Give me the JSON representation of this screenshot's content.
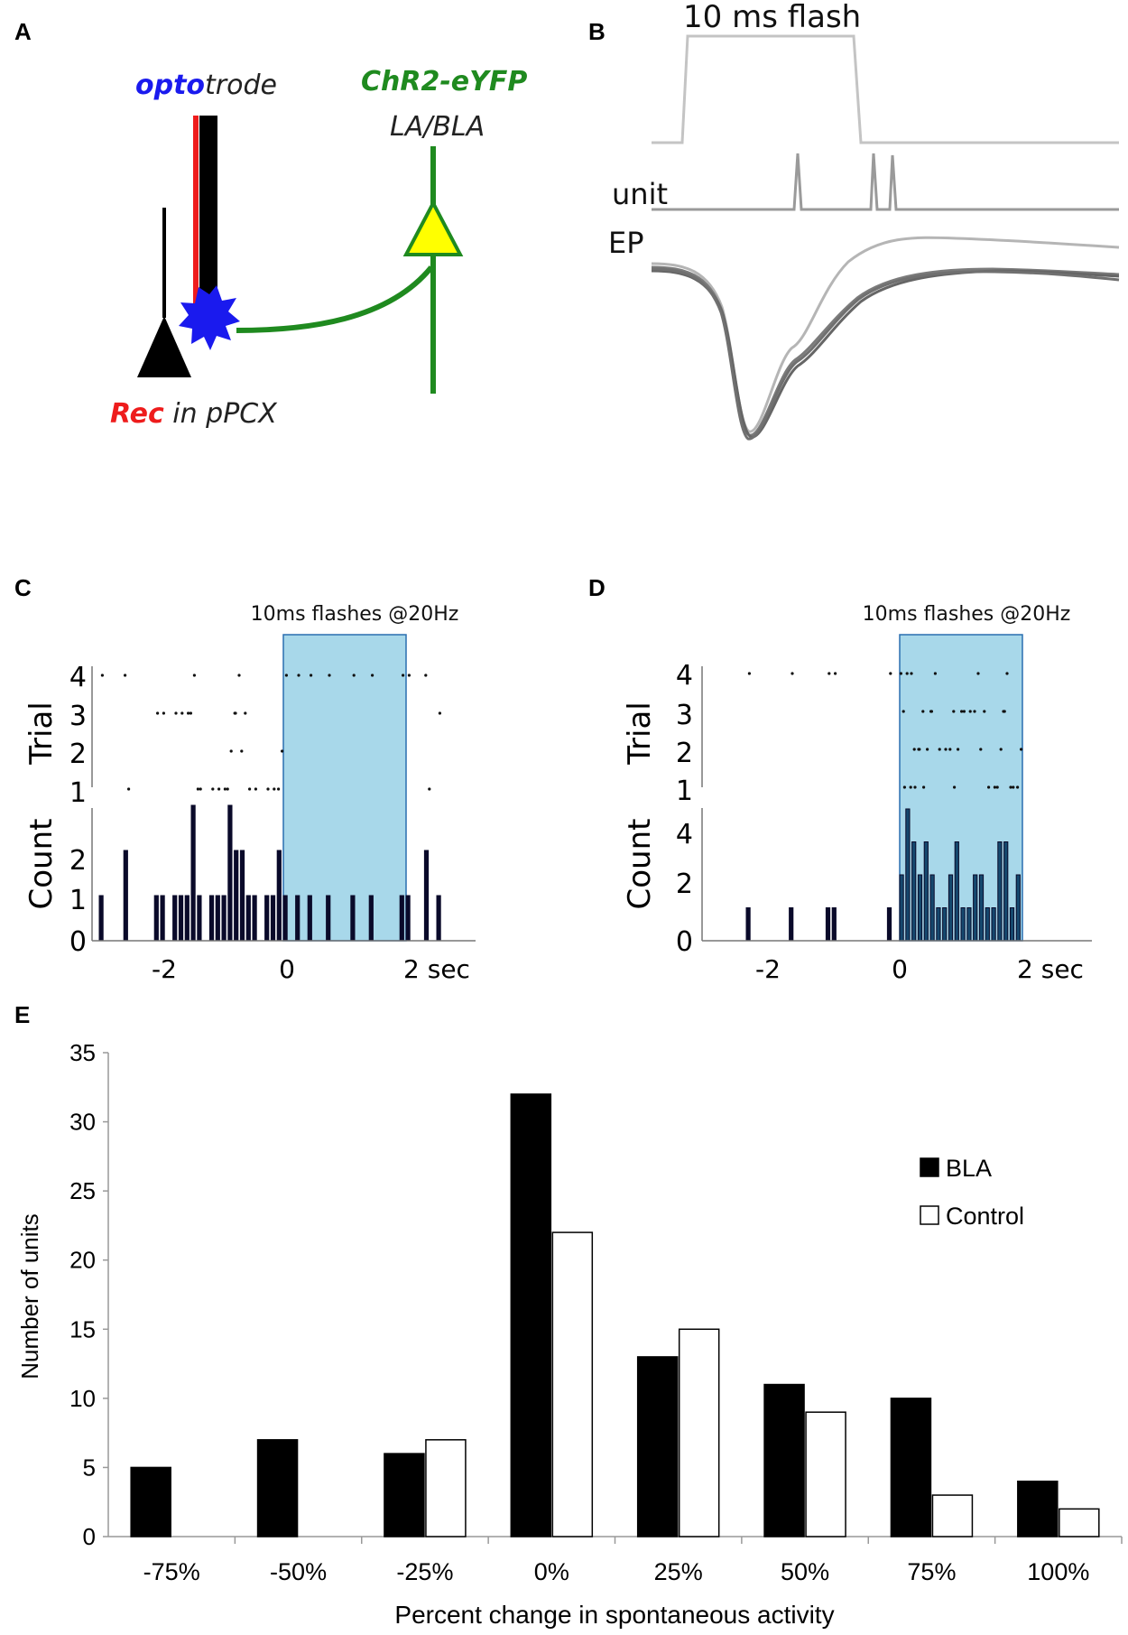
{
  "panels": {
    "a": "A",
    "b": "B",
    "c": "C",
    "d": "D",
    "e": "E"
  },
  "panel_a": {
    "optotrode_prefix": "opto",
    "optotrode_suffix": "trode",
    "chr2_label": "ChR2-eYFP",
    "target_label": "LA/BLA",
    "rec_word": "Rec",
    "rec_rest": " in pPCX",
    "colors": {
      "opto": "#1a1aee",
      "green": "#1f8a1f",
      "red": "#ee1c1c",
      "neuron_yellow": "#ffff00"
    }
  },
  "panel_b": {
    "flash_label": "10 ms flash",
    "unit_label": "unit",
    "ep_label": "EP"
  },
  "panel_c": {
    "title": "10ms flashes @20Hz",
    "raster_ylabel": "Trial",
    "hist_ylabel": "Count",
    "trial_ticks": [
      "4",
      "3",
      "2",
      "1"
    ],
    "count_ticks": [
      "2",
      "1",
      "0"
    ],
    "x_ticks": [
      "-2",
      "0",
      "2 sec"
    ]
  },
  "panel_d": {
    "title": "10ms flashes @20Hz",
    "raster_ylabel": "Trial",
    "hist_ylabel": "Count",
    "trial_ticks": [
      "4",
      "3",
      "2",
      "1"
    ],
    "count_ticks": [
      "4",
      "2",
      "0"
    ],
    "x_ticks": [
      "-2",
      "0",
      "2 sec"
    ]
  },
  "chart_data": [
    {
      "panel": "C",
      "type": "bar",
      "title": "10ms flashes @20Hz",
      "xlabel": "sec",
      "ylabel": "Count",
      "xlim": [
        -3,
        3
      ],
      "ylim": [
        0,
        3
      ],
      "stimulus_interval_sec": [
        0,
        2
      ],
      "bin_width_sec": 0.1,
      "x": [
        -2.95,
        -2.55,
        -2.05,
        -1.95,
        -1.75,
        -1.65,
        -1.55,
        -1.45,
        -1.35,
        -1.15,
        -1.05,
        -0.95,
        -0.85,
        -0.75,
        -0.65,
        -0.55,
        -0.45,
        -0.25,
        -0.15,
        -0.05,
        0.05,
        0.25,
        0.45,
        0.75,
        1.15,
        1.45,
        1.95,
        2.05,
        2.35,
        2.55
      ],
      "values": [
        1,
        2,
        1,
        1,
        1,
        1,
        1,
        3,
        1,
        1,
        1,
        1,
        3,
        2,
        2,
        1,
        1,
        1,
        1,
        2,
        1,
        1,
        1,
        1,
        1,
        1,
        1,
        1,
        2,
        1
      ]
    },
    {
      "panel": "D",
      "type": "bar",
      "title": "10ms flashes @20Hz",
      "xlabel": "sec",
      "ylabel": "Count",
      "xlim": [
        -3,
        3
      ],
      "ylim": [
        0,
        4
      ],
      "stimulus_interval_sec": [
        0,
        2
      ],
      "bin_width_sec": 0.1,
      "x": [
        -2.45,
        -1.75,
        -1.15,
        -1.05,
        -0.15,
        0.05,
        0.15,
        0.25,
        0.35,
        0.45,
        0.55,
        0.65,
        0.75,
        0.85,
        0.95,
        1.05,
        1.15,
        1.25,
        1.35,
        1.45,
        1.55,
        1.65,
        1.75,
        1.85,
        1.95
      ],
      "values": [
        1,
        1,
        1,
        1,
        1,
        2,
        4,
        3,
        2,
        3,
        2,
        1,
        1,
        2,
        3,
        1,
        1,
        2,
        2,
        1,
        1,
        3,
        3,
        1,
        2
      ]
    },
    {
      "panel": "E",
      "type": "bar",
      "title": "",
      "xlabel": "Percent change in spontaneous activity",
      "ylabel": "Number of units",
      "ylim": [
        0,
        35
      ],
      "y_ticks": [
        "0",
        "5",
        "10",
        "15",
        "20",
        "25",
        "30",
        "35"
      ],
      "categories": [
        "-75%",
        "-50%",
        "-25%",
        "0%",
        "25%",
        "50%",
        "75%",
        "100%"
      ],
      "legend_position": "right",
      "series": [
        {
          "name": "BLA",
          "color": "#000000",
          "values": [
            5,
            7,
            6,
            32,
            13,
            11,
            10,
            4
          ]
        },
        {
          "name": "Control",
          "color": "#ffffff",
          "values": [
            0,
            0,
            7,
            22,
            15,
            9,
            3,
            2
          ]
        }
      ]
    }
  ]
}
